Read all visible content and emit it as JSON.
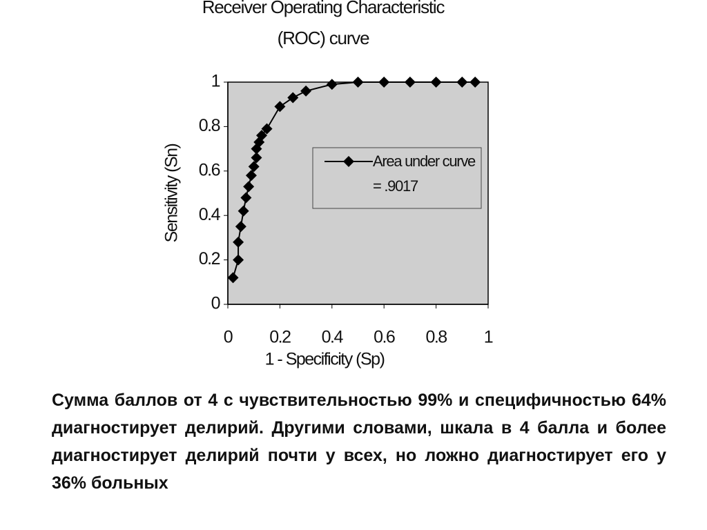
{
  "chart_data": {
    "type": "line",
    "title": "Receiver Operating Characteristic (ROC) curve",
    "x_label": "1 - Specificity (Sp)",
    "y_label": "Sensitivity (Sn)",
    "series": [
      {
        "name": "Area under curve = .9017",
        "color": "#000000",
        "marker": "diamond",
        "x": [
          0.02,
          0.04,
          0.04,
          0.05,
          0.06,
          0.07,
          0.08,
          0.09,
          0.1,
          0.11,
          0.11,
          0.12,
          0.13,
          0.15,
          0.2,
          0.25,
          0.3,
          0.4,
          0.5,
          0.6,
          0.7,
          0.8,
          0.9,
          0.95
        ],
        "values": [
          0.12,
          0.2,
          0.28,
          0.35,
          0.42,
          0.48,
          0.53,
          0.58,
          0.62,
          0.66,
          0.7,
          0.73,
          0.76,
          0.79,
          0.89,
          0.93,
          0.96,
          0.99,
          1,
          1,
          1,
          1,
          1,
          1
        ]
      }
    ],
    "xlim": [
      0,
      1
    ],
    "ylim": [
      0,
      1
    ],
    "xticks": [
      0,
      0.2,
      0.4,
      0.6,
      0.8,
      1
    ],
    "yticks": [
      0,
      0.2,
      0.4,
      0.6,
      0.8,
      1
    ],
    "grid": false,
    "plot_background": "#cfcfcf"
  },
  "caption": "Сумма баллов от 4 с чувствительностью 99% и специфичностью 64% диагностирует делирий. Другими словами, шкала в 4 балла и более диагностирует делирий почти у всех, но ложно диагностирует его у 36% больных"
}
